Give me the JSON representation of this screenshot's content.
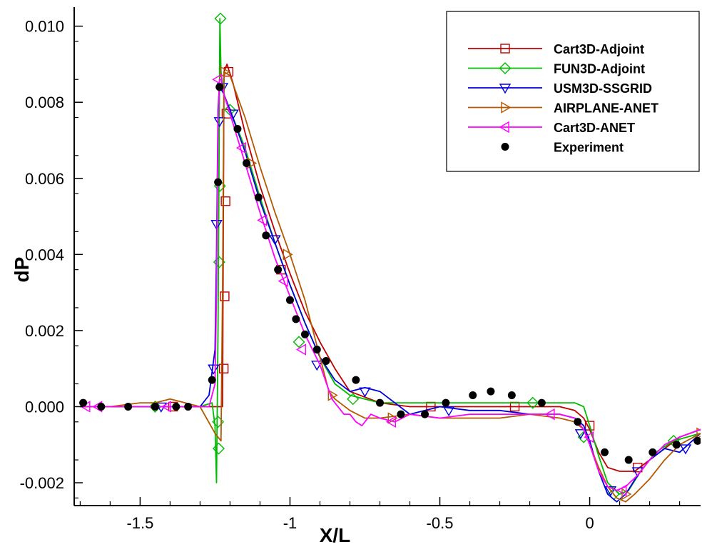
{
  "chart_data": {
    "type": "line",
    "title": "",
    "xlabel": "X/L",
    "ylabel": "dP",
    "xlim": [
      -1.72,
      0.37
    ],
    "ylim": [
      -0.0026,
      0.0105
    ],
    "x_ticks": [
      -1.5,
      -1,
      -0.5,
      0
    ],
    "x_tick_labels": [
      "-1.5",
      "-1",
      "-0.5",
      "0"
    ],
    "y_ticks": [
      -0.002,
      0,
      0.002,
      0.004,
      0.006,
      0.008,
      0.01
    ],
    "y_tick_labels": [
      "-0.002",
      "0.000",
      "0.002",
      "0.004",
      "0.006",
      "0.008",
      "0.010"
    ],
    "grid": false,
    "legend_position": "top-right",
    "series": [
      {
        "name": "Cart3D-Adjoint",
        "color": "#c00000",
        "marker": "square",
        "x": [
          -1.7,
          -1.6,
          -1.5,
          -1.4,
          -1.3,
          -1.25,
          -1.23,
          -1.225,
          -1.22,
          -1.21,
          -1.19,
          -1.15,
          -1.1,
          -1.05,
          -1.0,
          -0.95,
          -0.9,
          -0.85,
          -0.8,
          -0.7,
          -0.6,
          -0.5,
          -0.4,
          -0.3,
          -0.2,
          -0.1,
          -0.05,
          -0.02,
          0.0,
          0.03,
          0.06,
          0.1,
          0.15,
          0.2,
          0.25,
          0.3,
          0.37
        ],
        "y": [
          0.0,
          0.0,
          0.0,
          0.0,
          0.0,
          0.0,
          0.0,
          0.0,
          0.0088,
          0.009,
          0.0085,
          0.0072,
          0.0058,
          0.0046,
          0.0035,
          0.0025,
          0.0017,
          0.001,
          0.0004,
          0.0001,
          0.0,
          0.0,
          0.0,
          0.0,
          0.0,
          0.0,
          -0.0001,
          -0.0003,
          -0.0006,
          -0.0012,
          -0.0016,
          -0.0017,
          -0.0017,
          -0.0014,
          -0.0011,
          -0.0008,
          -0.0006
        ],
        "marker_x": [
          -1.39,
          -1.221,
          -1.218,
          -1.215,
          -1.212,
          -1.205,
          -1.03,
          -0.53,
          -0.25,
          0.0,
          0.16
        ],
        "marker_y": [
          0.0,
          0.001,
          0.0029,
          0.0054,
          0.0077,
          0.0088,
          0.0036,
          0.0,
          0.0,
          -0.0005,
          -0.0016
        ]
      },
      {
        "name": "FUN3D-Adjoint",
        "color": "#00bb00",
        "marker": "diamond",
        "x": [
          -1.7,
          -1.6,
          -1.5,
          -1.4,
          -1.3,
          -1.26,
          -1.25,
          -1.245,
          -1.24,
          -1.237,
          -1.234,
          -1.23,
          -1.22,
          -1.2,
          -1.15,
          -1.1,
          -1.05,
          -1.0,
          -0.95,
          -0.9,
          -0.85,
          -0.8,
          -0.7,
          -0.6,
          -0.5,
          -0.4,
          -0.3,
          -0.2,
          -0.1,
          -0.05,
          -0.02,
          0.0,
          0.03,
          0.06,
          0.1,
          0.13,
          0.17,
          0.22,
          0.28,
          0.37
        ],
        "y": [
          0.0,
          0.0,
          0.0,
          0.0,
          0.0,
          0.0001,
          -0.0005,
          -0.002,
          0.002,
          0.006,
          0.0102,
          0.0088,
          0.0082,
          0.0078,
          0.0068,
          0.0055,
          0.0043,
          0.0032,
          0.0022,
          0.0013,
          0.0006,
          0.0003,
          0.0001,
          0.0001,
          0.0001,
          0.0001,
          0.0001,
          0.0001,
          0.0001,
          0.0001,
          0.0,
          -0.0005,
          -0.0013,
          -0.002,
          -0.0023,
          -0.0022,
          -0.0017,
          -0.0012,
          -0.0009,
          -0.0007
        ],
        "marker_x": [
          -1.45,
          -1.24,
          -1.238,
          -1.236,
          -1.234,
          -1.232,
          -1.2,
          -0.97,
          -0.79,
          -0.19,
          -0.02,
          0.08,
          0.28
        ],
        "marker_y": [
          0.0,
          -0.0004,
          -0.0011,
          0.0038,
          0.0058,
          0.0102,
          0.0078,
          0.0017,
          0.0002,
          0.0001,
          -0.0008,
          -0.0023,
          -0.0009
        ]
      },
      {
        "name": "USM3D-SSGRID",
        "color": "#0000dd",
        "marker": "triangle-down",
        "x": [
          -1.7,
          -1.6,
          -1.5,
          -1.4,
          -1.3,
          -1.27,
          -1.25,
          -1.245,
          -1.24,
          -1.235,
          -1.23,
          -1.22,
          -1.2,
          -1.15,
          -1.1,
          -1.05,
          -1.0,
          -0.95,
          -0.9,
          -0.85,
          -0.8,
          -0.75,
          -0.7,
          -0.6,
          -0.5,
          -0.4,
          -0.3,
          -0.2,
          -0.1,
          -0.05,
          -0.02,
          0.0,
          0.03,
          0.06,
          0.09,
          0.12,
          0.16,
          0.2,
          0.25,
          0.3,
          0.37
        ],
        "y": [
          0.0,
          0.0,
          0.0,
          0.0,
          0.0,
          0.0003,
          0.0015,
          0.004,
          0.0078,
          0.0085,
          0.0084,
          0.0082,
          0.0078,
          0.0067,
          0.0054,
          0.0043,
          0.0032,
          0.0022,
          0.0013,
          0.0007,
          0.0004,
          0.0005,
          0.0004,
          -0.0002,
          0.0,
          -0.0001,
          -0.0001,
          -0.0002,
          -0.0002,
          -0.0003,
          -0.0005,
          -0.0009,
          -0.0017,
          -0.0023,
          -0.0025,
          -0.0023,
          -0.0018,
          -0.0014,
          -0.0011,
          -0.0012,
          -0.0007
        ],
        "marker_x": [
          -1.43,
          -1.255,
          -1.245,
          -1.235,
          -1.225,
          -1.19,
          -1.05,
          -0.91,
          -0.75,
          -0.47,
          -0.03,
          0.07,
          0.16,
          0.32
        ],
        "marker_y": [
          0.0,
          0.001,
          0.0048,
          0.0075,
          0.0084,
          0.0077,
          0.0044,
          0.0011,
          0.0004,
          -0.0001,
          -0.0007,
          -0.0022,
          -0.0017,
          -0.0011
        ]
      },
      {
        "name": "AIRPLANE-ANET",
        "color": "#b35900",
        "marker": "triangle-right",
        "x": [
          -1.7,
          -1.6,
          -1.5,
          -1.45,
          -1.4,
          -1.35,
          -1.3,
          -1.25,
          -1.23,
          -1.225,
          -1.22,
          -1.2,
          -1.15,
          -1.1,
          -1.05,
          -1.0,
          -0.95,
          -0.9,
          -0.87,
          -0.85,
          -0.8,
          -0.75,
          -0.7,
          -0.6,
          -0.5,
          -0.4,
          -0.3,
          -0.2,
          -0.1,
          -0.05,
          -0.02,
          0.0,
          0.03,
          0.06,
          0.09,
          0.12,
          0.15,
          0.2,
          0.25,
          0.3,
          0.37
        ],
        "y": [
          0.0,
          0.0,
          0.0001,
          0.0001,
          0.0002,
          0.0001,
          0.0,
          -0.0007,
          -0.0009,
          0.003,
          0.0088,
          0.0087,
          0.0076,
          0.0063,
          0.0051,
          0.004,
          0.0028,
          0.0013,
          0.0004,
          0.0002,
          -0.0001,
          -0.0003,
          -0.0003,
          -0.0002,
          -0.0003,
          -0.0003,
          -0.0003,
          -0.0002,
          -0.0003,
          -0.0004,
          -0.0006,
          -0.001,
          -0.0016,
          -0.0021,
          -0.0024,
          -0.0025,
          -0.0023,
          -0.0019,
          -0.0014,
          -0.001,
          -0.0007
        ],
        "marker_x": [
          -1.22,
          -1.13,
          -1.01,
          -0.86,
          -0.66,
          0.12,
          0.37
        ],
        "marker_y": [
          0.0088,
          0.0064,
          0.004,
          0.0003,
          -0.0003,
          -0.0023,
          -0.0007
        ]
      },
      {
        "name": "Cart3D-ANET",
        "color": "#ff00ff",
        "marker": "triangle-left",
        "x": [
          -1.7,
          -1.6,
          -1.5,
          -1.4,
          -1.3,
          -1.27,
          -1.25,
          -1.245,
          -1.24,
          -1.235,
          -1.23,
          -1.22,
          -1.2,
          -1.15,
          -1.1,
          -1.05,
          -1.0,
          -0.95,
          -0.9,
          -0.86,
          -0.82,
          -0.8,
          -0.78,
          -0.76,
          -0.73,
          -0.7,
          -0.65,
          -0.6,
          -0.5,
          -0.4,
          -0.3,
          -0.2,
          -0.1,
          -0.05,
          -0.02,
          0.0,
          0.03,
          0.06,
          0.09,
          0.12,
          0.16,
          0.2,
          0.25,
          0.3,
          0.37
        ],
        "y": [
          0.0,
          0.0,
          0.0,
          0.0,
          0.0,
          0.0,
          0.0006,
          0.003,
          0.0075,
          0.0086,
          0.0086,
          0.0082,
          0.0077,
          0.0064,
          0.0051,
          0.0039,
          0.0029,
          0.0019,
          0.0011,
          0.0002,
          -0.0002,
          -0.0002,
          -0.0004,
          -0.0005,
          -0.0002,
          -0.0003,
          -0.0004,
          -0.0002,
          -0.0003,
          -0.0002,
          -0.0002,
          -0.0002,
          -0.0002,
          -0.0003,
          -0.0006,
          -0.001,
          -0.0017,
          -0.0021,
          -0.0022,
          -0.0021,
          -0.0018,
          -0.0014,
          -0.001,
          -0.0008,
          -0.0006
        ],
        "marker_x": [
          -1.68,
          -1.64,
          -1.41,
          -1.24,
          -1.16,
          -1.09,
          -1.02,
          -0.96,
          -0.66,
          -0.13,
          0.0,
          0.11
        ],
        "marker_y": [
          0.0,
          0.0,
          0.0,
          0.0086,
          0.0068,
          0.0049,
          0.0033,
          0.0015,
          -0.0004,
          -0.0002,
          -0.0008,
          -0.0022
        ]
      }
    ],
    "experiment": {
      "name": "Experiment",
      "color": "#000000",
      "marker": "circle",
      "x": [
        -1.69,
        -1.63,
        -1.54,
        -1.45,
        -1.38,
        -1.34,
        -1.26,
        -1.24,
        -1.235,
        -1.175,
        -1.145,
        -1.105,
        -1.08,
        -1.04,
        -1.0,
        -0.98,
        -0.95,
        -0.91,
        -0.88,
        -0.78,
        -0.7,
        -0.63,
        -0.55,
        -0.48,
        -0.39,
        -0.33,
        -0.26,
        -0.16,
        -0.04,
        0.05,
        0.13,
        0.21,
        0.29,
        0.36
      ],
      "y": [
        0.0001,
        0.0,
        0.0,
        0.0,
        0.0,
        0.0,
        0.0007,
        0.0059,
        0.0084,
        0.0073,
        0.0064,
        0.0055,
        0.0045,
        0.0036,
        0.0028,
        0.0023,
        0.0019,
        0.0015,
        0.0012,
        0.0007,
        0.0001,
        -0.0002,
        -0.0002,
        0.0001,
        0.0003,
        0.0004,
        0.0003,
        0.0001,
        -0.0004,
        -0.0012,
        -0.0014,
        -0.0012,
        -0.001,
        -0.0009
      ]
    }
  }
}
